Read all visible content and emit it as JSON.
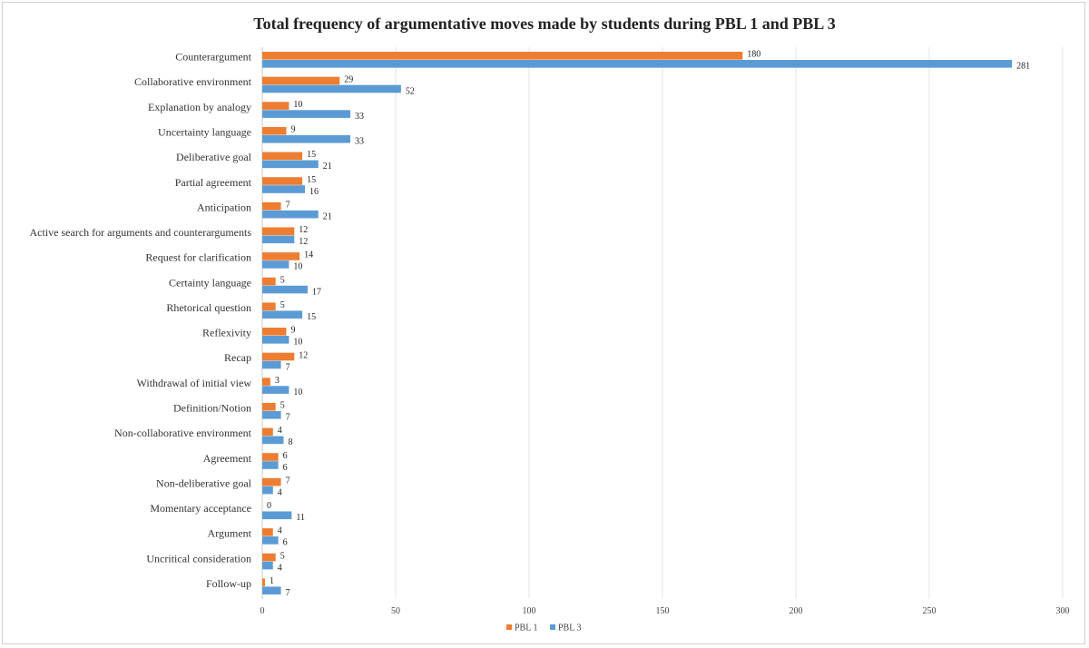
{
  "chart_data": {
    "type": "bar",
    "orientation": "horizontal",
    "title": "Total frequency of argumentative moves made by students during PBL 1 and PBL 3",
    "xlabel": "",
    "ylabel": "",
    "xlim": [
      0,
      300
    ],
    "x_ticks": [
      "0",
      "50",
      "100",
      "150",
      "200",
      "250",
      "300"
    ],
    "grid": true,
    "legend_position": "bottom-center",
    "categories": [
      "Counterargument",
      "Collaborative environment",
      "Explanation by analogy",
      "Uncertainty language",
      "Deliberative goal",
      "Partial agreement",
      "Anticipation",
      "Active search for arguments and counterarguments",
      "Request for clarification",
      "Certainty language",
      "Rhetorical question",
      "Reflexivity",
      "Recap",
      "Withdrawal of initial view",
      "Definition/Notion",
      "Non-collaborative environment",
      "Agreement",
      "Non-deliberative goal",
      "Momentary acceptance",
      "Argument",
      "Uncritical consideration",
      "Follow-up"
    ],
    "series": [
      {
        "name": "PBL 1",
        "color": "#ED7D31",
        "values": [
          180,
          29,
          10,
          9,
          15,
          15,
          7,
          12,
          14,
          5,
          5,
          9,
          12,
          3,
          5,
          4,
          6,
          7,
          0,
          4,
          5,
          1
        ]
      },
      {
        "name": "PBL 3",
        "color": "#5B9BD5",
        "values": [
          281,
          52,
          33,
          33,
          21,
          16,
          21,
          12,
          10,
          17,
          15,
          10,
          7,
          10,
          7,
          8,
          6,
          4,
          11,
          6,
          4,
          7
        ]
      }
    ]
  }
}
